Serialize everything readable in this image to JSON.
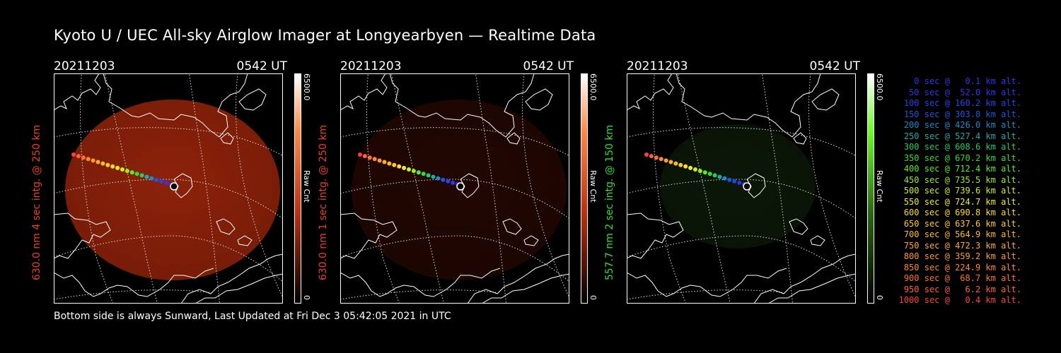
{
  "title": "Kyoto U / UEC All-sky Airglow Imager at Longyearbyen — Realtime Data",
  "footer": "Bottom side is always Sunward, Last Updated at Fri Dec  3 05:42:05 2021 in UTC",
  "panels": [
    {
      "date": "20211203",
      "time": "0542 UT",
      "ylabel": "630.0 nm 4 sec intg. @ 250 km",
      "ylabel_color": "#e8402a",
      "cbar_max": "6500.0",
      "cbar_min": "0",
      "cbar_unit": "Raw Cnt",
      "image_color": "#b02a0c",
      "image_brightness": 0.8,
      "cbar_top_color": "#ff8844",
      "cbar_mid_color": "#c03010"
    },
    {
      "date": "20211203",
      "time": "0542 UT",
      "ylabel": "630.0 nm 1 sec intg. @ 250 km",
      "ylabel_color": "#e8402a",
      "cbar_max": "6500.0",
      "cbar_min": "0",
      "cbar_unit": "Raw Cnt",
      "image_color": "#4a1006",
      "image_brightness": 0.45,
      "cbar_top_color": "#ff8844",
      "cbar_mid_color": "#c03010"
    },
    {
      "date": "20211203",
      "time": "0542 UT",
      "ylabel": "557.7 nm 2 sec intg. @ 150 km",
      "ylabel_color": "#33dd33",
      "cbar_max": "6500.0",
      "cbar_min": "0",
      "cbar_unit": "Raw Cnt",
      "image_color": "#1c3a12",
      "image_brightness": 0.4,
      "cbar_top_color": "#66ff22",
      "cbar_mid_color": "#2a6a10"
    }
  ],
  "legend": [
    {
      "text": "0 sec @   0.1 km alt.",
      "color": "#3333ee"
    },
    {
      "text": "50 sec @  52.0 km alt.",
      "color": "#3333ee"
    },
    {
      "text": "100 sec @ 160.2 km alt.",
      "color": "#2244ee"
    },
    {
      "text": "150 sec @ 303.8 km alt.",
      "color": "#2255dd"
    },
    {
      "text": "200 sec @ 426.0 km alt.",
      "color": "#2288cc"
    },
    {
      "text": "250 sec @ 527.4 km alt.",
      "color": "#22aaaa"
    },
    {
      "text": "300 sec @ 608.6 km alt.",
      "color": "#22cc66"
    },
    {
      "text": "350 sec @ 670.2 km alt.",
      "color": "#33dd33"
    },
    {
      "text": "400 sec @ 712.4 km alt.",
      "color": "#55ee22"
    },
    {
      "text": "450 sec @ 735.5 km alt.",
      "color": "#99ee22"
    },
    {
      "text": "500 sec @ 739.6 km alt.",
      "color": "#ccee22"
    },
    {
      "text": "550 sec @ 724.7 km alt.",
      "color": "#eeee22"
    },
    {
      "text": "600 sec @ 690.8 km alt.",
      "color": "#ffdd22"
    },
    {
      "text": "650 sec @ 637.6 km alt.",
      "color": "#ffcc22"
    },
    {
      "text": "700 sec @ 564.9 km alt.",
      "color": "#ffbb22"
    },
    {
      "text": "750 sec @ 472.3 km alt.",
      "color": "#ffaa33"
    },
    {
      "text": "800 sec @ 359.2 km alt.",
      "color": "#ff9933"
    },
    {
      "text": "850 sec @ 224.9 km alt.",
      "color": "#ff8833"
    },
    {
      "text": "900 sec @  68.7 km alt.",
      "color": "#ff7033"
    },
    {
      "text": "950 sec @   6.2 km alt.",
      "color": "#ff6040"
    },
    {
      "text": "1000 sec @   0.4 km alt.",
      "color": "#ff4040"
    }
  ]
}
